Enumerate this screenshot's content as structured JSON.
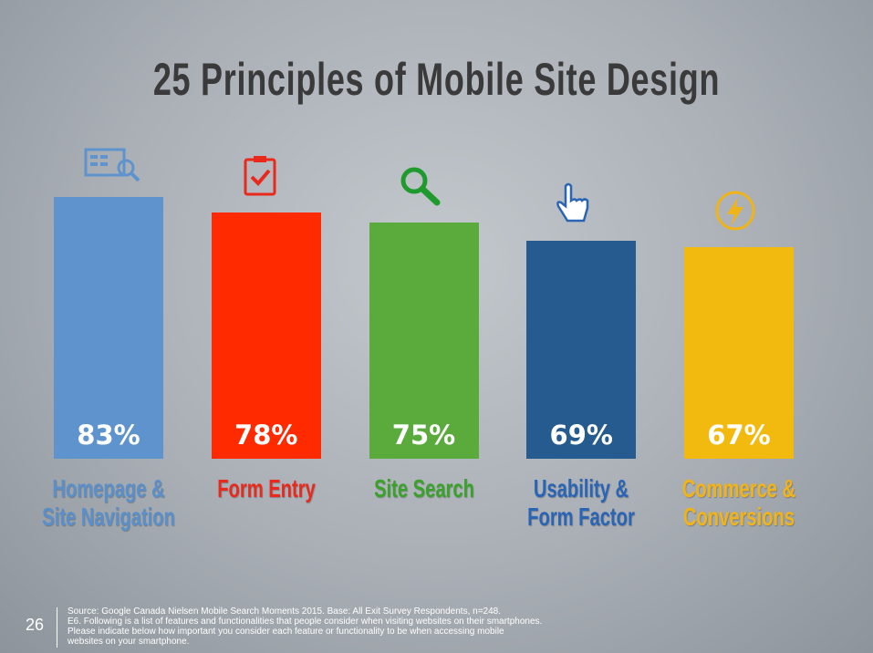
{
  "chart_data": {
    "type": "bar",
    "title": "25 Principles of Mobile Site Design",
    "categories": [
      "Homepage & Site Navigation",
      "Form Entry",
      "Site Search",
      "Usability & Form Factor",
      "Commerce & Conversions"
    ],
    "values": [
      83,
      78,
      75,
      69,
      67
    ],
    "value_labels": [
      "83%",
      "78%",
      "75%",
      "69%",
      "67%"
    ],
    "colors": [
      "#5f93cd",
      "#ff2a00",
      "#5aab3c",
      "#265b8f",
      "#f2b90f"
    ],
    "label_colors": [
      "#5b8fc9",
      "#e8291c",
      "#3aa12b",
      "#2a64b5",
      "#f0b419"
    ]
  },
  "footer": {
    "page_number": "26",
    "lines": [
      "Source: Google Canada Nielsen Mobile  Search Moments 2015. Base: All Exit Survey Respondents, n=248.",
      "E6.  Following is a list of features and functionalities that people consider when visiting websites on their smartphones.",
      "Please indicate below how important you consider each feature or functionality to be when accessing mobile",
      "websites on your smartphone."
    ]
  }
}
